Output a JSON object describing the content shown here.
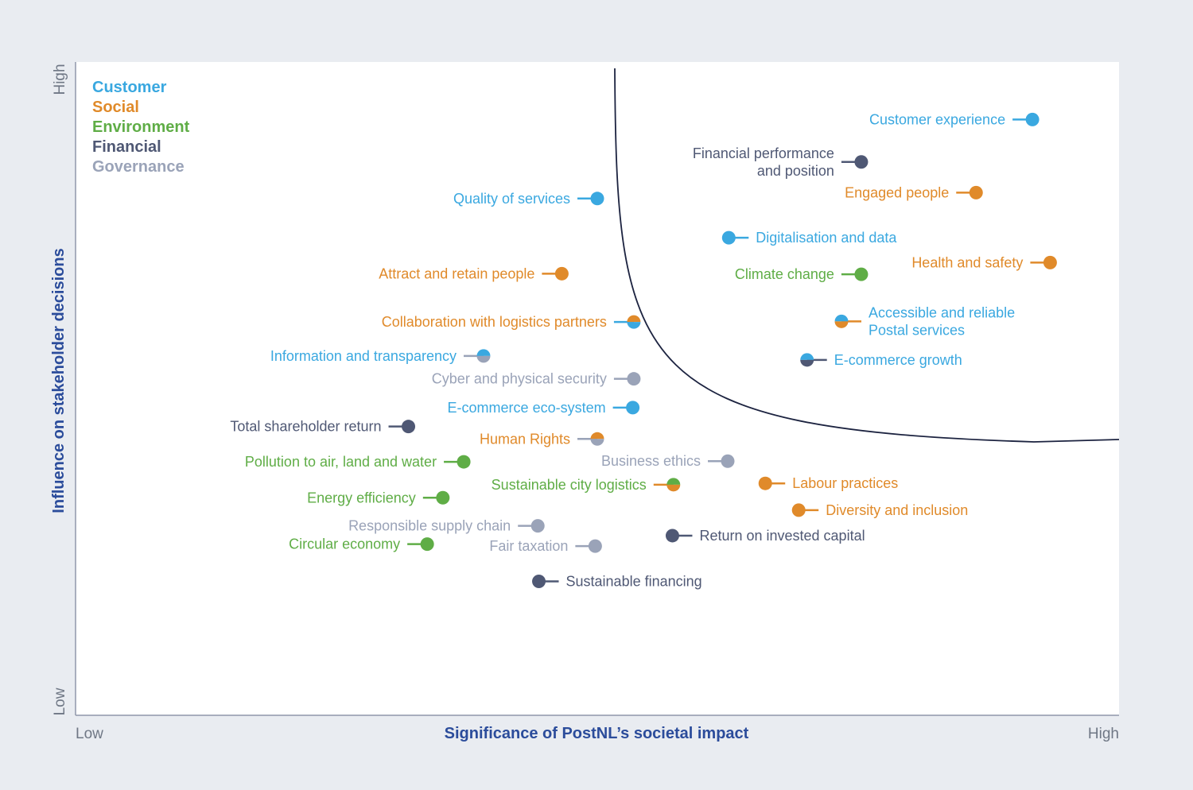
{
  "chart_data": {
    "type": "scatter",
    "title": "",
    "xlabel": "Significance of PostNL’s societal impact",
    "ylabel": "Influence on stakeholder decisions",
    "x_low_label": "Low",
    "x_high_label": "High",
    "y_low_label": "Low",
    "y_high_label": "High",
    "xlim": [
      0,
      100
    ],
    "ylim": [
      0,
      100
    ],
    "legend_position": "top-left",
    "categories": [
      {
        "key": "customer",
        "name": "Customer",
        "color": "#3aa8e0"
      },
      {
        "key": "social",
        "name": "Social",
        "color": "#e08a2a"
      },
      {
        "key": "environment",
        "name": "Environment",
        "color": "#5fad46"
      },
      {
        "key": "financial",
        "name": "Financial",
        "color": "#4f5874"
      },
      {
        "key": "governance",
        "name": "Governance",
        "color": "#9aa3b8"
      }
    ],
    "threshold_curve": true,
    "points": [
      {
        "label": [
          "Customer experience"
        ],
        "x": 91.7,
        "y": 91.2,
        "category": "customer",
        "side": "left"
      },
      {
        "label": [
          "Financial performance",
          "and position"
        ],
        "x": 75.3,
        "y": 84.7,
        "category": "financial",
        "side": "left"
      },
      {
        "label": [
          "Engaged people"
        ],
        "x": 86.3,
        "y": 80.0,
        "category": "social",
        "side": "left"
      },
      {
        "label": [
          "Quality of services"
        ],
        "x": 50.0,
        "y": 79.1,
        "category": "customer",
        "side": "left"
      },
      {
        "label": [
          "Digitalisation and data"
        ],
        "x": 62.6,
        "y": 73.1,
        "category": "customer",
        "side": "right"
      },
      {
        "label": [
          "Health and safety"
        ],
        "x": 93.4,
        "y": 69.3,
        "category": "social",
        "side": "left"
      },
      {
        "label": [
          "Attract and retain people"
        ],
        "x": 46.6,
        "y": 67.6,
        "category": "social",
        "side": "left"
      },
      {
        "label": [
          "Climate change"
        ],
        "x": 75.3,
        "y": 67.5,
        "category": "environment",
        "side": "left"
      },
      {
        "label": [
          "Accessible and reliable",
          "Postal services"
        ],
        "x": 73.4,
        "y": 60.3,
        "category": "customer",
        "category2": "social",
        "side": "right"
      },
      {
        "label": [
          "Collaboration with logistics partners"
        ],
        "x": 53.5,
        "y": 60.2,
        "category": "social",
        "category2": "customer",
        "side": "left"
      },
      {
        "label": [
          "Information and transparency"
        ],
        "x": 39.1,
        "y": 55.0,
        "category": "customer",
        "category2": "governance",
        "side": "left"
      },
      {
        "label": [
          "E-commerce growth"
        ],
        "x": 70.1,
        "y": 54.4,
        "category": "customer",
        "category2": "financial",
        "side": "right"
      },
      {
        "label": [
          "Cyber and physical security"
        ],
        "x": 53.5,
        "y": 51.5,
        "category": "governance",
        "side": "left"
      },
      {
        "label": [
          "E-commerce eco-system"
        ],
        "x": 53.4,
        "y": 47.1,
        "category": "customer",
        "side": "left"
      },
      {
        "label": [
          "Total shareholder return"
        ],
        "x": 31.9,
        "y": 44.2,
        "category": "financial",
        "side": "left"
      },
      {
        "label": [
          "Human Rights"
        ],
        "x": 50.0,
        "y": 42.3,
        "category": "social",
        "category2": "governance",
        "side": "left"
      },
      {
        "label": [
          "Pollution to air, land and water"
        ],
        "x": 37.2,
        "y": 38.8,
        "category": "environment",
        "side": "left"
      },
      {
        "label": [
          "Business ethics"
        ],
        "x": 62.5,
        "y": 38.9,
        "category": "governance",
        "side": "left"
      },
      {
        "label": [
          "Sustainable city logistics"
        ],
        "x": 57.3,
        "y": 35.3,
        "category": "environment",
        "category2": "social",
        "side": "left"
      },
      {
        "label": [
          "Labour practices"
        ],
        "x": 66.1,
        "y": 35.5,
        "category": "social",
        "side": "right"
      },
      {
        "label": [
          "Energy efficiency"
        ],
        "x": 35.2,
        "y": 33.3,
        "category": "environment",
        "side": "left"
      },
      {
        "label": [
          "Diversity and inclusion"
        ],
        "x": 69.3,
        "y": 31.4,
        "category": "social",
        "side": "right"
      },
      {
        "label": [
          "Responsible supply chain"
        ],
        "x": 44.3,
        "y": 29.0,
        "category": "governance",
        "side": "left"
      },
      {
        "label": [
          "Return on invested capital"
        ],
        "x": 57.2,
        "y": 27.5,
        "category": "financial",
        "side": "right"
      },
      {
        "label": [
          "Circular economy"
        ],
        "x": 33.7,
        "y": 26.2,
        "category": "environment",
        "side": "left"
      },
      {
        "label": [
          "Fair taxation"
        ],
        "x": 49.8,
        "y": 25.9,
        "category": "governance",
        "side": "left"
      },
      {
        "label": [
          "Sustainable financing"
        ],
        "x": 44.4,
        "y": 20.5,
        "category": "financial",
        "side": "right"
      }
    ]
  }
}
